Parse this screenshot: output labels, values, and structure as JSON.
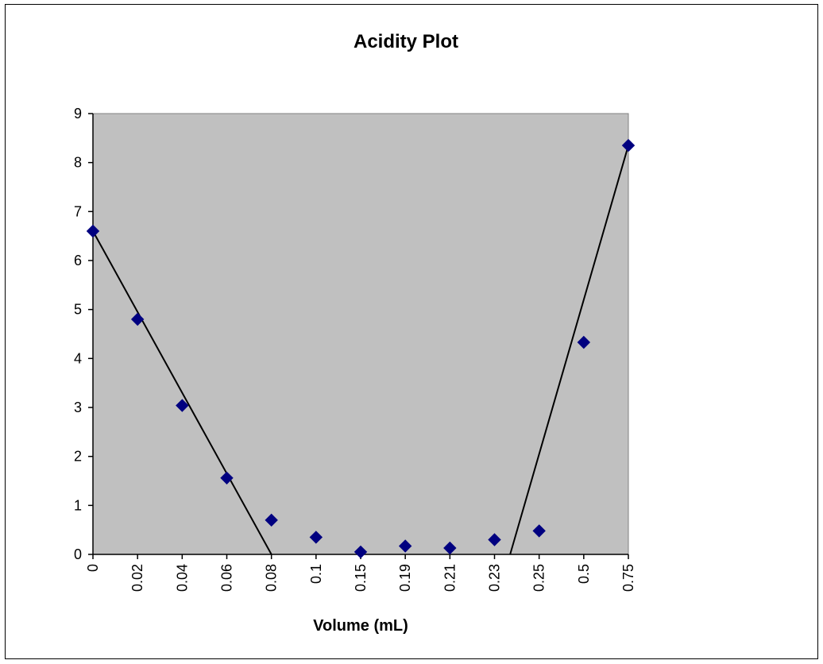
{
  "chart_data": {
    "type": "scatter",
    "title": "Acidity Plot",
    "xlabel": "Volume (mL)",
    "ylabel": "",
    "x_axis_kind": "category",
    "categories": [
      "0",
      "0.02",
      "0.04",
      "0.06",
      "0.08",
      "0.1",
      "0.15",
      "0.19",
      "0.21",
      "0.23",
      "0.25",
      "0.5",
      "0.75"
    ],
    "ylim": [
      0,
      9
    ],
    "y_ticks": [
      "0",
      "1",
      "2",
      "3",
      "4",
      "5",
      "6",
      "7",
      "8",
      "9"
    ],
    "grid": false,
    "legend": "none",
    "plot_background": "#C0C0C0",
    "series": [
      {
        "color": "#000080",
        "marker": "diamond",
        "values": [
          6.6,
          4.8,
          3.04,
          1.56,
          0.7,
          0.35,
          0.05,
          0.17,
          0.13,
          0.3,
          0.48,
          4.33,
          8.35
        ]
      }
    ],
    "trendlines": [
      {
        "color": "#000000",
        "from": {
          "x": "0",
          "y": 6.6
        },
        "to": {
          "x_between": [
            "0.08",
            "0.1"
          ],
          "x_fraction": 0.0,
          "y": 0
        }
      },
      {
        "color": "#000000",
        "from": {
          "x_between": [
            "0.23",
            "0.25"
          ],
          "x_fraction": 0.35,
          "y": 0
        },
        "to": {
          "x": "0.75",
          "y": 8.35
        }
      }
    ]
  }
}
